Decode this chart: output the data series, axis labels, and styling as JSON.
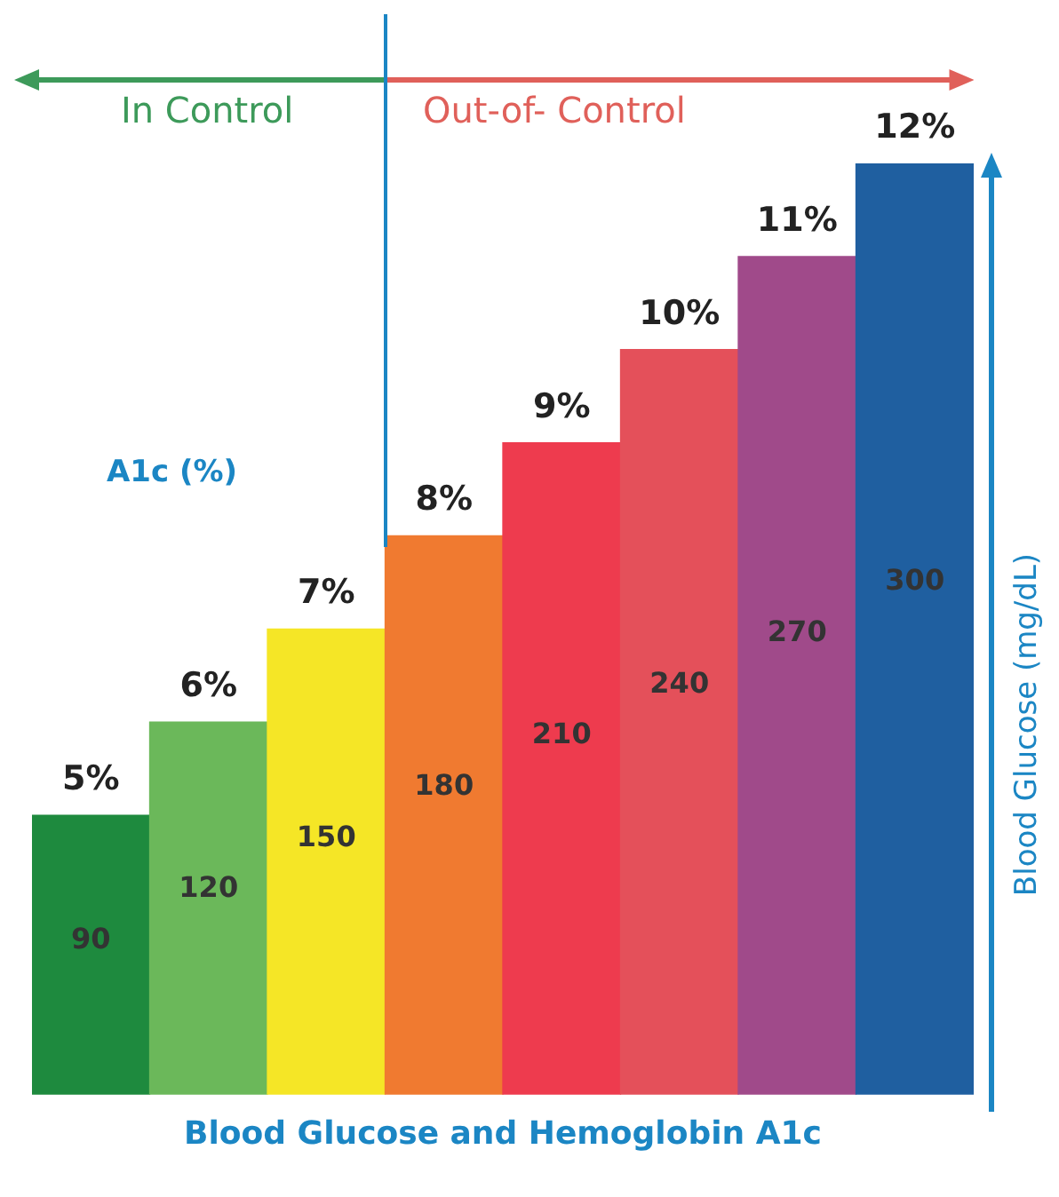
{
  "chart_data": {
    "type": "bar",
    "title": "Blood Glucose and Hemoglobin A1c",
    "ylabel": "Blood Glucose (mg/dL)",
    "categories": [
      "5%",
      "6%",
      "7%",
      "8%",
      "9%",
      "10%",
      "11%",
      "12%"
    ],
    "values": [
      90,
      120,
      150,
      180,
      210,
      240,
      270,
      300
    ],
    "colors": [
      "#1e8a3e",
      "#6bb85a",
      "#f5e626",
      "#f07a30",
      "#ee3b4e",
      "#e4505a",
      "#a04a8a",
      "#1f5fa0"
    ],
    "data_labels": true,
    "tick_labels": "x",
    "annotations": [
      "In Control",
      "Out-of- Control",
      "A1c (%)"
    ]
  }
}
